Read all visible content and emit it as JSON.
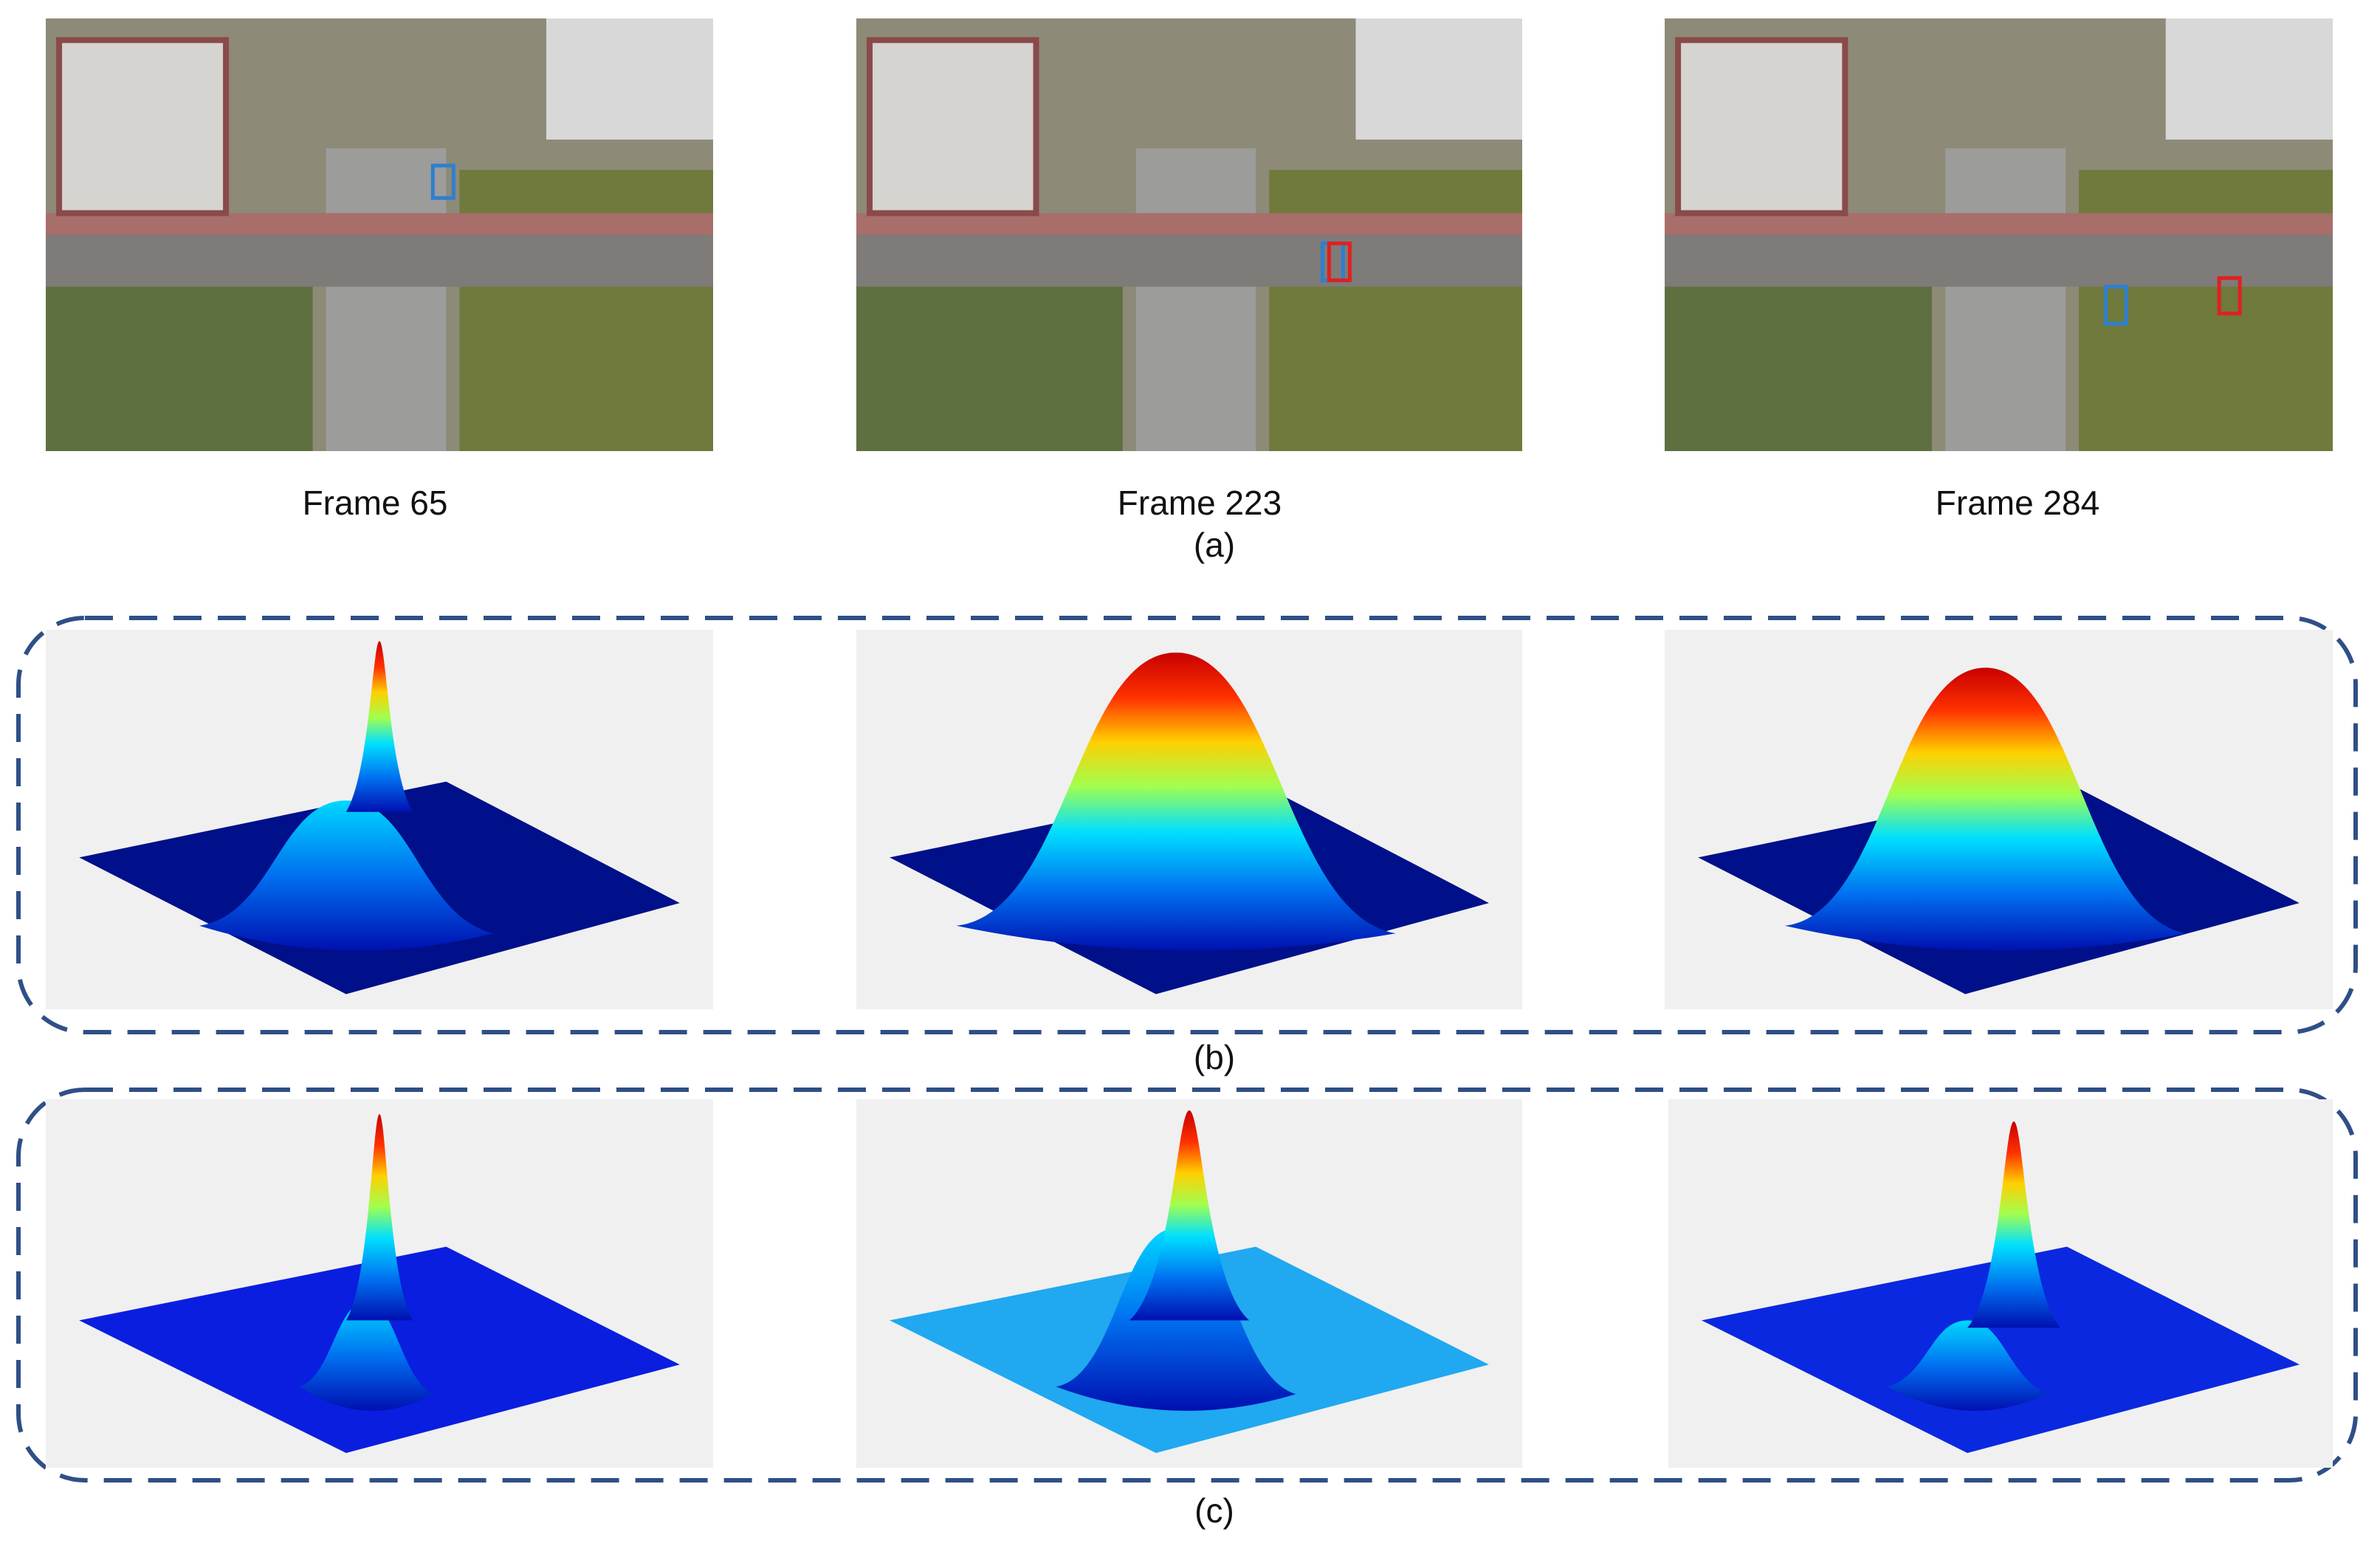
{
  "panel_a": {
    "frames": [
      "Frame 65",
      "Frame 223",
      "Frame 284"
    ],
    "caption": "(a)"
  },
  "panel_b": {
    "caption": "(b)"
  },
  "panel_c": {
    "caption": "(c)"
  }
}
